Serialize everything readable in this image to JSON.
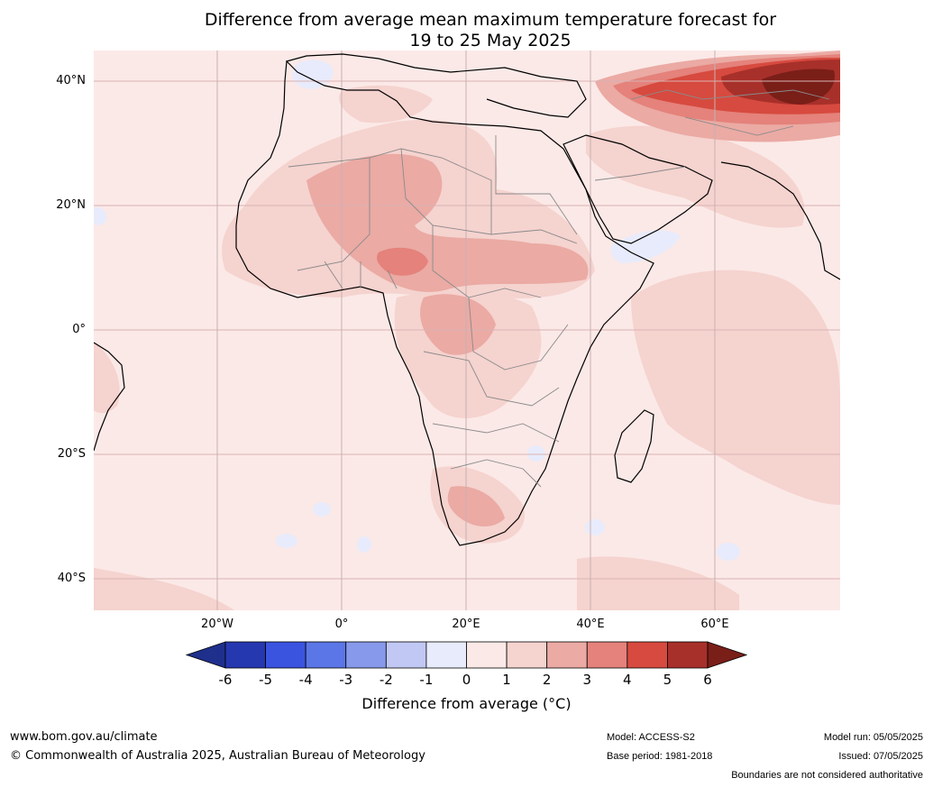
{
  "title": {
    "line1": "Difference from average mean maximum temperature forecast for",
    "line2": "19 to 25 May 2025"
  },
  "map": {
    "lat_labels": [
      "40°N",
      "20°N",
      "0°",
      "20°S",
      "40°S"
    ],
    "lon_labels": [
      "20°W",
      "0°",
      "20°E",
      "40°E",
      "60°E"
    ],
    "background_anomaly_color": "#fbe9e7"
  },
  "colorbar": {
    "ticks": [
      "-6",
      "-5",
      "-4",
      "-3",
      "-2",
      "-1",
      "0",
      "1",
      "2",
      "3",
      "4",
      "5",
      "6"
    ],
    "colors": [
      "#1f2f8c",
      "#2638b0",
      "#3a54e0",
      "#5b76e6",
      "#8799ea",
      "#c1c8f3",
      "#e8ebfb",
      "#fbe9e7",
      "#f5d3cf",
      "#ebaaa4",
      "#e4827b",
      "#d74a3f",
      "#a8302a",
      "#7a1e18"
    ],
    "label": "Difference from average (°C)"
  },
  "footer": {
    "url": "www.bom.gov.au/climate",
    "copyright": "© Commonwealth of Australia 2025, Australian Bureau of Meteorology",
    "model": "Model: ACCESS-S2",
    "base_period": "Base period: 1981-2018",
    "model_run": "Model run: 05/05/2025",
    "issued": "Issued: 07/05/2025",
    "disclaimer": "Boundaries are not considered authoritative"
  }
}
